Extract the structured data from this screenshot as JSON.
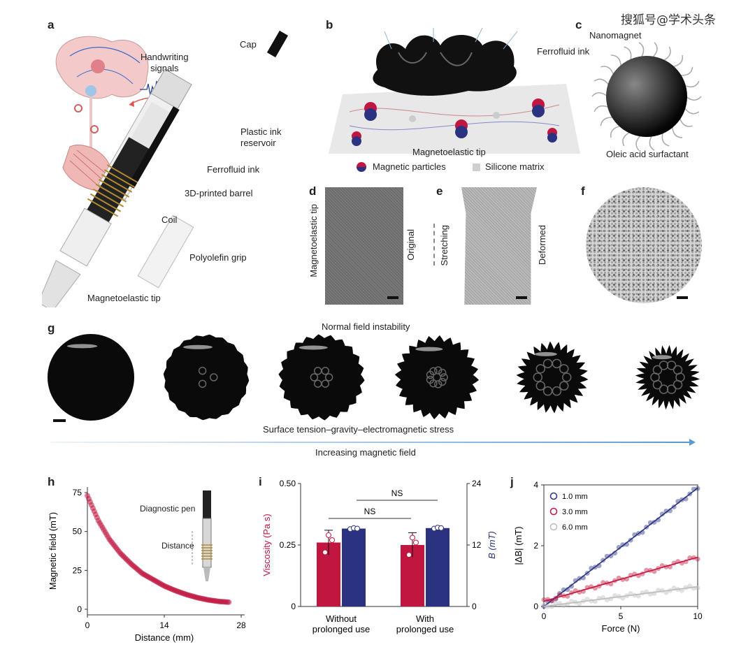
{
  "watermark": "搜狐号@学术头条",
  "panels": {
    "a": {
      "letter": "a",
      "labels": {
        "handwriting": "Handwriting\nsignals",
        "cap": "Cap",
        "reservoir": "Plastic ink\nreservoir",
        "ferrofluid": "Ferrofluid ink",
        "barrel": "3D-printed barrel",
        "coil": "Coil",
        "grip": "Polyolefin grip",
        "tip": "Magnetoelastic tip"
      }
    },
    "b": {
      "letter": "b",
      "labels": {
        "ferrofluid": "Ferrofluid ink",
        "tip": "Magnetoelastic tip",
        "particles": "Magnetic particles",
        "matrix": "Silicone matrix"
      }
    },
    "c": {
      "letter": "c",
      "labels": {
        "nanomagnet": "Nanomagnet",
        "surfactant": "Oleic acid surfactant"
      }
    },
    "d": {
      "letter": "d",
      "labels": {
        "tip": "Magnetoelastic tip",
        "original": "Original"
      }
    },
    "e": {
      "letter": "e",
      "labels": {
        "stretching": "Stretching",
        "deformed": "Deformed"
      }
    },
    "f": {
      "letter": "f"
    },
    "g": {
      "letter": "g",
      "labels": {
        "top": "Normal field instability",
        "bottom": "Surface tension–gravity–electromagnetic stress",
        "arrow": "Increasing magnetic field"
      }
    },
    "h": {
      "letter": "h",
      "labels": {
        "pen": "Diagnostic pen",
        "distance": "Distance"
      }
    },
    "i": {
      "letter": "i",
      "labels": {
        "ns1": "NS",
        "ns2": "NS"
      }
    },
    "j": {
      "letter": "j"
    }
  },
  "chart_data": [
    {
      "type": "scatter",
      "panel": "h",
      "xlabel": "Distance (mm)",
      "ylabel": "Magnetic field (mT)",
      "xlim": [
        0,
        28
      ],
      "ylim": [
        0,
        75
      ],
      "xticks": [
        "0",
        "14",
        "28"
      ],
      "yticks": [
        "0",
        "25",
        "50",
        "75"
      ],
      "series": [
        {
          "x": [
            0,
            2,
            4,
            6,
            8,
            10,
            12,
            14,
            16,
            18,
            20,
            22,
            24,
            26
          ],
          "y": [
            73,
            57,
            45,
            36,
            29,
            23,
            19,
            15,
            12,
            9.5,
            7.5,
            6,
            5,
            4.5
          ]
        }
      ]
    },
    {
      "type": "bar",
      "panel": "i",
      "categories": [
        "Without\nprolonged use",
        "With\nprolonged use"
      ],
      "ylabel_left": "Viscosity (Pa s)",
      "ylabel_right": "B (mT)",
      "ylim_left": [
        0,
        0.5
      ],
      "ylim_right": [
        0,
        24
      ],
      "yticks_left": [
        "0",
        "0.25",
        "0.50"
      ],
      "yticks_right": [
        "0",
        "12",
        "24"
      ],
      "series": [
        {
          "axis": "left",
          "color": "#c0163f",
          "values": [
            0.26,
            0.25
          ],
          "err": [
            0.05,
            0.05
          ],
          "points": [
            [
              0.22,
              0.29,
              0.27
            ],
            [
              0.21,
              0.28,
              0.26
            ]
          ]
        },
        {
          "axis": "right",
          "color": "#2b3381",
          "values": [
            15.2,
            15.3
          ],
          "err": [
            0.3,
            0.3
          ],
          "points": [
            [
              15.1,
              15.3,
              15.2
            ],
            [
              15.2,
              15.4,
              15.3
            ]
          ]
        }
      ]
    },
    {
      "type": "scatter",
      "panel": "j",
      "xlabel": "Force (N)",
      "ylabel": "|ΔB| (mT)",
      "xlim": [
        0,
        10
      ],
      "ylim": [
        0,
        4
      ],
      "xticks": [
        "0",
        "5",
        "10"
      ],
      "yticks": [
        "0",
        "2",
        "4"
      ],
      "legend": "top-left",
      "series": [
        {
          "name": "1.0 mm",
          "color": "#2b3381",
          "slope": 0.39,
          "intercept": 0.0
        },
        {
          "name": "3.0 mm",
          "color": "#c0163f",
          "slope": 0.145,
          "intercept": 0.17
        },
        {
          "name": "6.0 mm",
          "color": "#bdbdbd",
          "slope": 0.065,
          "intercept": 0.0
        }
      ]
    }
  ]
}
